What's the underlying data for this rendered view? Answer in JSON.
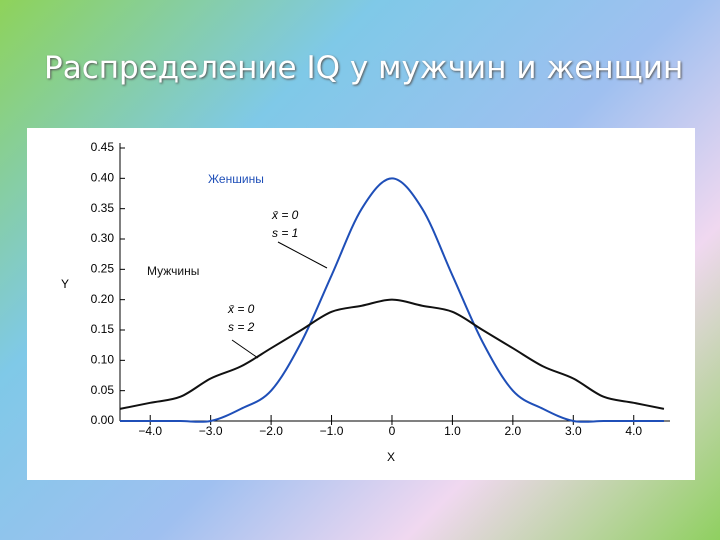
{
  "chart_data": {
    "type": "line",
    "title": "Распределение IQ у мужчин и женщин",
    "x_label": "X",
    "y_label": "Y",
    "x": [
      -4.5,
      -4.0,
      -3.5,
      -3.0,
      -2.5,
      -2.0,
      -1.5,
      -1.0,
      -0.5,
      0,
      0.5,
      1.0,
      1.5,
      2.0,
      2.5,
      3.0,
      3.5,
      4.0,
      4.5
    ],
    "series": [
      {
        "name": "Женшины",
        "color": "#1f4fb8",
        "values": [
          0.0,
          0.0,
          0.0,
          0.0,
          0.02,
          0.05,
          0.13,
          0.24,
          0.35,
          0.4,
          0.35,
          0.24,
          0.13,
          0.05,
          0.02,
          0.0,
          0.0,
          0.0,
          0.0
        ]
      },
      {
        "name": "Мужчины",
        "color": "#111111",
        "values": [
          0.02,
          0.03,
          0.04,
          0.07,
          0.09,
          0.12,
          0.15,
          0.18,
          0.19,
          0.2,
          0.19,
          0.18,
          0.15,
          0.12,
          0.09,
          0.07,
          0.04,
          0.03,
          0.02
        ]
      }
    ],
    "annotations": [
      "x̄ = 0",
      "s = 1",
      "x̄ = 0",
      "s = 2"
    ],
    "xlim": [
      -4.5,
      4.6
    ],
    "ylim": [
      0,
      0.45
    ],
    "xticks": [
      {
        "value": -4,
        "label": "−4.0"
      },
      {
        "value": -3,
        "label": "−3.0"
      },
      {
        "value": -2,
        "label": "−2.0"
      },
      {
        "value": -1,
        "label": "−1.0"
      },
      0,
      {
        "value": 1,
        "label": "1.0"
      },
      {
        "value": 2,
        "label": "2.0"
      },
      {
        "value": 3,
        "label": "3.0"
      },
      {
        "value": 4,
        "label": "4.0"
      }
    ],
    "yticks": [
      {
        "value": 0,
        "label": "0.00"
      },
      0.05,
      {
        "value": 0.1,
        "label": "0.10"
      },
      0.15,
      {
        "value": 0.2,
        "label": "0.20"
      },
      0.25,
      {
        "value": 0.3,
        "label": "0.30"
      },
      0.35,
      {
        "value": 0.4,
        "label": "0.40"
      },
      0.45
    ]
  }
}
